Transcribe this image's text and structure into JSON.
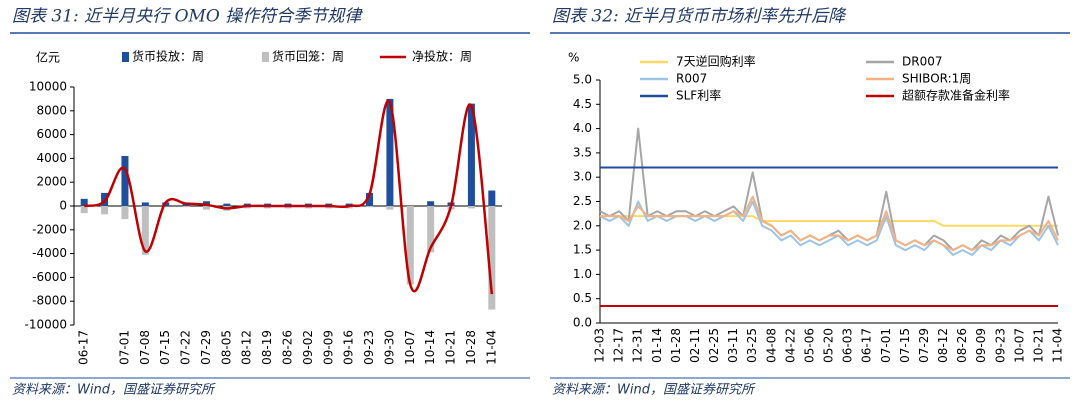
{
  "chart_data": [
    {
      "type": "bar",
      "title": "图表 31: 近半月央行 OMO 操作符合季节规律",
      "ylabel": "亿元",
      "source": "资料来源：Wind，国盛证券研究所",
      "categories": [
        "06-17",
        null,
        "07-01",
        "07-08",
        "07-15",
        "07-22",
        "07-29",
        "08-05",
        "08-12",
        "08-19",
        "08-26",
        "09-02",
        "09-09",
        "09-16",
        "09-23",
        "09-30",
        "10-07",
        "10-14",
        "10-21",
        "10-28",
        "11-04"
      ],
      "series": [
        {
          "name": "货币投放：周",
          "color": "#1f4e9c",
          "kind": "bar",
          "values": [
            600,
            1100,
            4200,
            300,
            300,
            300,
            400,
            200,
            200,
            200,
            200,
            200,
            200,
            200,
            1100,
            9000,
            0,
            400,
            300,
            8600,
            1300
          ]
        },
        {
          "name": "货币回笼：周",
          "color": "#bfbfbf",
          "kind": "bar",
          "values": [
            -600,
            -700,
            -1100,
            -4100,
            0,
            -100,
            -300,
            -400,
            -200,
            -200,
            -200,
            -200,
            -200,
            -200,
            -100,
            -300,
            -6600,
            -3900,
            -300,
            -200,
            -8700
          ]
        },
        {
          "name": "净投放：周",
          "color": "#c00000",
          "kind": "line",
          "values": [
            0,
            400,
            3100,
            -3800,
            300,
            200,
            100,
            -200,
            0,
            0,
            0,
            0,
            0,
            0,
            1000,
            8700,
            -6600,
            -3500,
            0,
            8400,
            -7400
          ]
        }
      ],
      "ylim": [
        -10000,
        10000
      ],
      "yticks": [
        -10000,
        -8000,
        -6000,
        -4000,
        -2000,
        0,
        2000,
        4000,
        6000,
        8000,
        10000
      ]
    },
    {
      "type": "line",
      "title": "图表 32: 近半月货币市场利率先升后降",
      "ylabel": "%",
      "source": "资料来源：Wind，国盛证券研究所",
      "categories": [
        "12-03",
        null,
        "12-17",
        null,
        "12-31",
        null,
        "01-14",
        null,
        "01-28",
        null,
        "02-11",
        null,
        "02-25",
        null,
        "03-11",
        null,
        "03-25",
        null,
        "04-08",
        null,
        "04-22",
        null,
        "05-06",
        null,
        "05-20",
        null,
        "06-03",
        null,
        "06-17",
        null,
        "07-01",
        null,
        "07-15",
        null,
        "07-29",
        null,
        "08-12",
        null,
        "08-26",
        null,
        "09-09",
        null,
        "09-23",
        null,
        "10-07",
        null,
        "10-21",
        null,
        "11-04"
      ],
      "series": [
        {
          "name": "7天逆回购利率",
          "color": "#ffd966",
          "values": [
            2.2,
            2.2,
            2.2,
            2.2,
            2.2,
            2.2,
            2.2,
            2.2,
            2.2,
            2.2,
            2.2,
            2.2,
            2.2,
            2.2,
            2.2,
            2.2,
            2.2,
            2.1,
            2.1,
            2.1,
            2.1,
            2.1,
            2.1,
            2.1,
            2.1,
            2.1,
            2.1,
            2.1,
            2.1,
            2.1,
            2.1,
            2.1,
            2.1,
            2.1,
            2.1,
            2.1,
            2.0,
            2.0,
            2.0,
            2.0,
            2.0,
            2.0,
            2.0,
            2.0,
            2.0,
            2.0,
            2.0,
            2.0,
            2.0
          ]
        },
        {
          "name": "DR007",
          "color": "#a6a6a6",
          "values": [
            2.3,
            2.2,
            2.3,
            2.1,
            4.0,
            2.2,
            2.3,
            2.2,
            2.3,
            2.3,
            2.2,
            2.3,
            2.2,
            2.3,
            2.4,
            2.2,
            3.1,
            2.1,
            2.0,
            1.8,
            1.9,
            1.7,
            1.8,
            1.7,
            1.8,
            1.9,
            1.7,
            1.8,
            1.7,
            1.8,
            2.7,
            1.7,
            1.6,
            1.7,
            1.6,
            1.8,
            1.7,
            1.5,
            1.6,
            1.5,
            1.7,
            1.6,
            1.8,
            1.7,
            1.9,
            2.0,
            1.8,
            2.6,
            1.8
          ]
        },
        {
          "name": "R007",
          "color": "#9dc3e6",
          "values": [
            2.2,
            2.1,
            2.2,
            2.0,
            2.5,
            2.1,
            2.2,
            2.1,
            2.2,
            2.2,
            2.1,
            2.2,
            2.1,
            2.2,
            2.3,
            2.1,
            2.5,
            2.0,
            1.9,
            1.7,
            1.8,
            1.6,
            1.7,
            1.6,
            1.7,
            1.8,
            1.6,
            1.7,
            1.6,
            1.7,
            2.2,
            1.6,
            1.5,
            1.6,
            1.5,
            1.7,
            1.6,
            1.4,
            1.5,
            1.4,
            1.6,
            1.5,
            1.7,
            1.6,
            1.8,
            1.9,
            1.7,
            2.0,
            1.6
          ]
        },
        {
          "name": "SHIBOR:1周",
          "color": "#f4b183",
          "values": [
            2.2,
            2.2,
            2.2,
            2.1,
            2.4,
            2.2,
            2.2,
            2.2,
            2.2,
            2.2,
            2.2,
            2.2,
            2.2,
            2.2,
            2.3,
            2.2,
            2.6,
            2.1,
            2.0,
            1.8,
            1.9,
            1.7,
            1.8,
            1.7,
            1.8,
            1.8,
            1.7,
            1.8,
            1.7,
            1.8,
            2.3,
            1.7,
            1.6,
            1.7,
            1.6,
            1.7,
            1.6,
            1.5,
            1.6,
            1.5,
            1.6,
            1.6,
            1.7,
            1.7,
            1.8,
            1.9,
            1.8,
            2.1,
            1.7
          ]
        },
        {
          "name": "SLF利率",
          "color": "#1f4e9c",
          "values": [
            3.2,
            3.2,
            3.2,
            3.2,
            3.2,
            3.2,
            3.2,
            3.2,
            3.2,
            3.2,
            3.2,
            3.2,
            3.2,
            3.2,
            3.2,
            3.2,
            3.2,
            3.2,
            3.2,
            3.2,
            3.2,
            3.2,
            3.2,
            3.2,
            3.2,
            3.2,
            3.2,
            3.2,
            3.2,
            3.2,
            3.2,
            3.2,
            3.2,
            3.2,
            3.2,
            3.2,
            3.2,
            3.2,
            3.2,
            3.2,
            3.2,
            3.2,
            3.2,
            3.2,
            3.2,
            3.2,
            3.2,
            3.2,
            3.2
          ]
        },
        {
          "name": "超额存款准备金利率",
          "color": "#c00000",
          "values": [
            0.35,
            0.35,
            0.35,
            0.35,
            0.35,
            0.35,
            0.35,
            0.35,
            0.35,
            0.35,
            0.35,
            0.35,
            0.35,
            0.35,
            0.35,
            0.35,
            0.35,
            0.35,
            0.35,
            0.35,
            0.35,
            0.35,
            0.35,
            0.35,
            0.35,
            0.35,
            0.35,
            0.35,
            0.35,
            0.35,
            0.35,
            0.35,
            0.35,
            0.35,
            0.35,
            0.35,
            0.35,
            0.35,
            0.35,
            0.35,
            0.35,
            0.35,
            0.35,
            0.35,
            0.35,
            0.35,
            0.35,
            0.35,
            0.35
          ]
        }
      ],
      "ylim": [
        0,
        5
      ],
      "yticks": [
        {
          "value": 0,
          "label": "0.0"
        },
        {
          "value": 0.5,
          "label": "0.5"
        },
        {
          "value": 1,
          "label": "1.0"
        },
        {
          "value": 1.5,
          "label": "1.5"
        },
        {
          "value": 2,
          "label": "2.0"
        },
        {
          "value": 2.5,
          "label": "2.5"
        },
        {
          "value": 3,
          "label": "3.0"
        },
        {
          "value": 3.5,
          "label": "3.5"
        },
        {
          "value": 4,
          "label": "4.0"
        },
        {
          "value": 4.5,
          "label": "4.5"
        },
        {
          "value": 5,
          "label": "5.0"
        }
      ]
    }
  ]
}
